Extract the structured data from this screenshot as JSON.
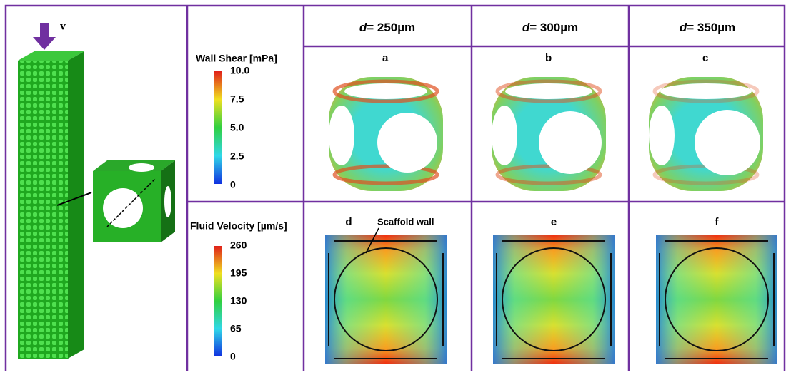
{
  "figure": {
    "flow_label": "v",
    "wall_shear": {
      "title": "Wall Shear [mPa]",
      "ticks": [
        "10.0",
        "7.5",
        "5.0",
        "2.5",
        "0"
      ]
    },
    "fluid_velocity": {
      "title": "Fluid Velocity [µm/s]",
      "ticks": [
        "260",
        "195",
        "130",
        "65",
        "0"
      ]
    },
    "columns": [
      {
        "symbol": "d",
        "text": "= 250µm"
      },
      {
        "symbol": "d",
        "text": "= 300µm"
      },
      {
        "symbol": "d",
        "text": "= 350µm"
      }
    ],
    "shear_panels": [
      "a",
      "b",
      "c"
    ],
    "velocity_panels": [
      "d",
      "e",
      "f"
    ],
    "annotation": "Scaffold wall"
  }
}
